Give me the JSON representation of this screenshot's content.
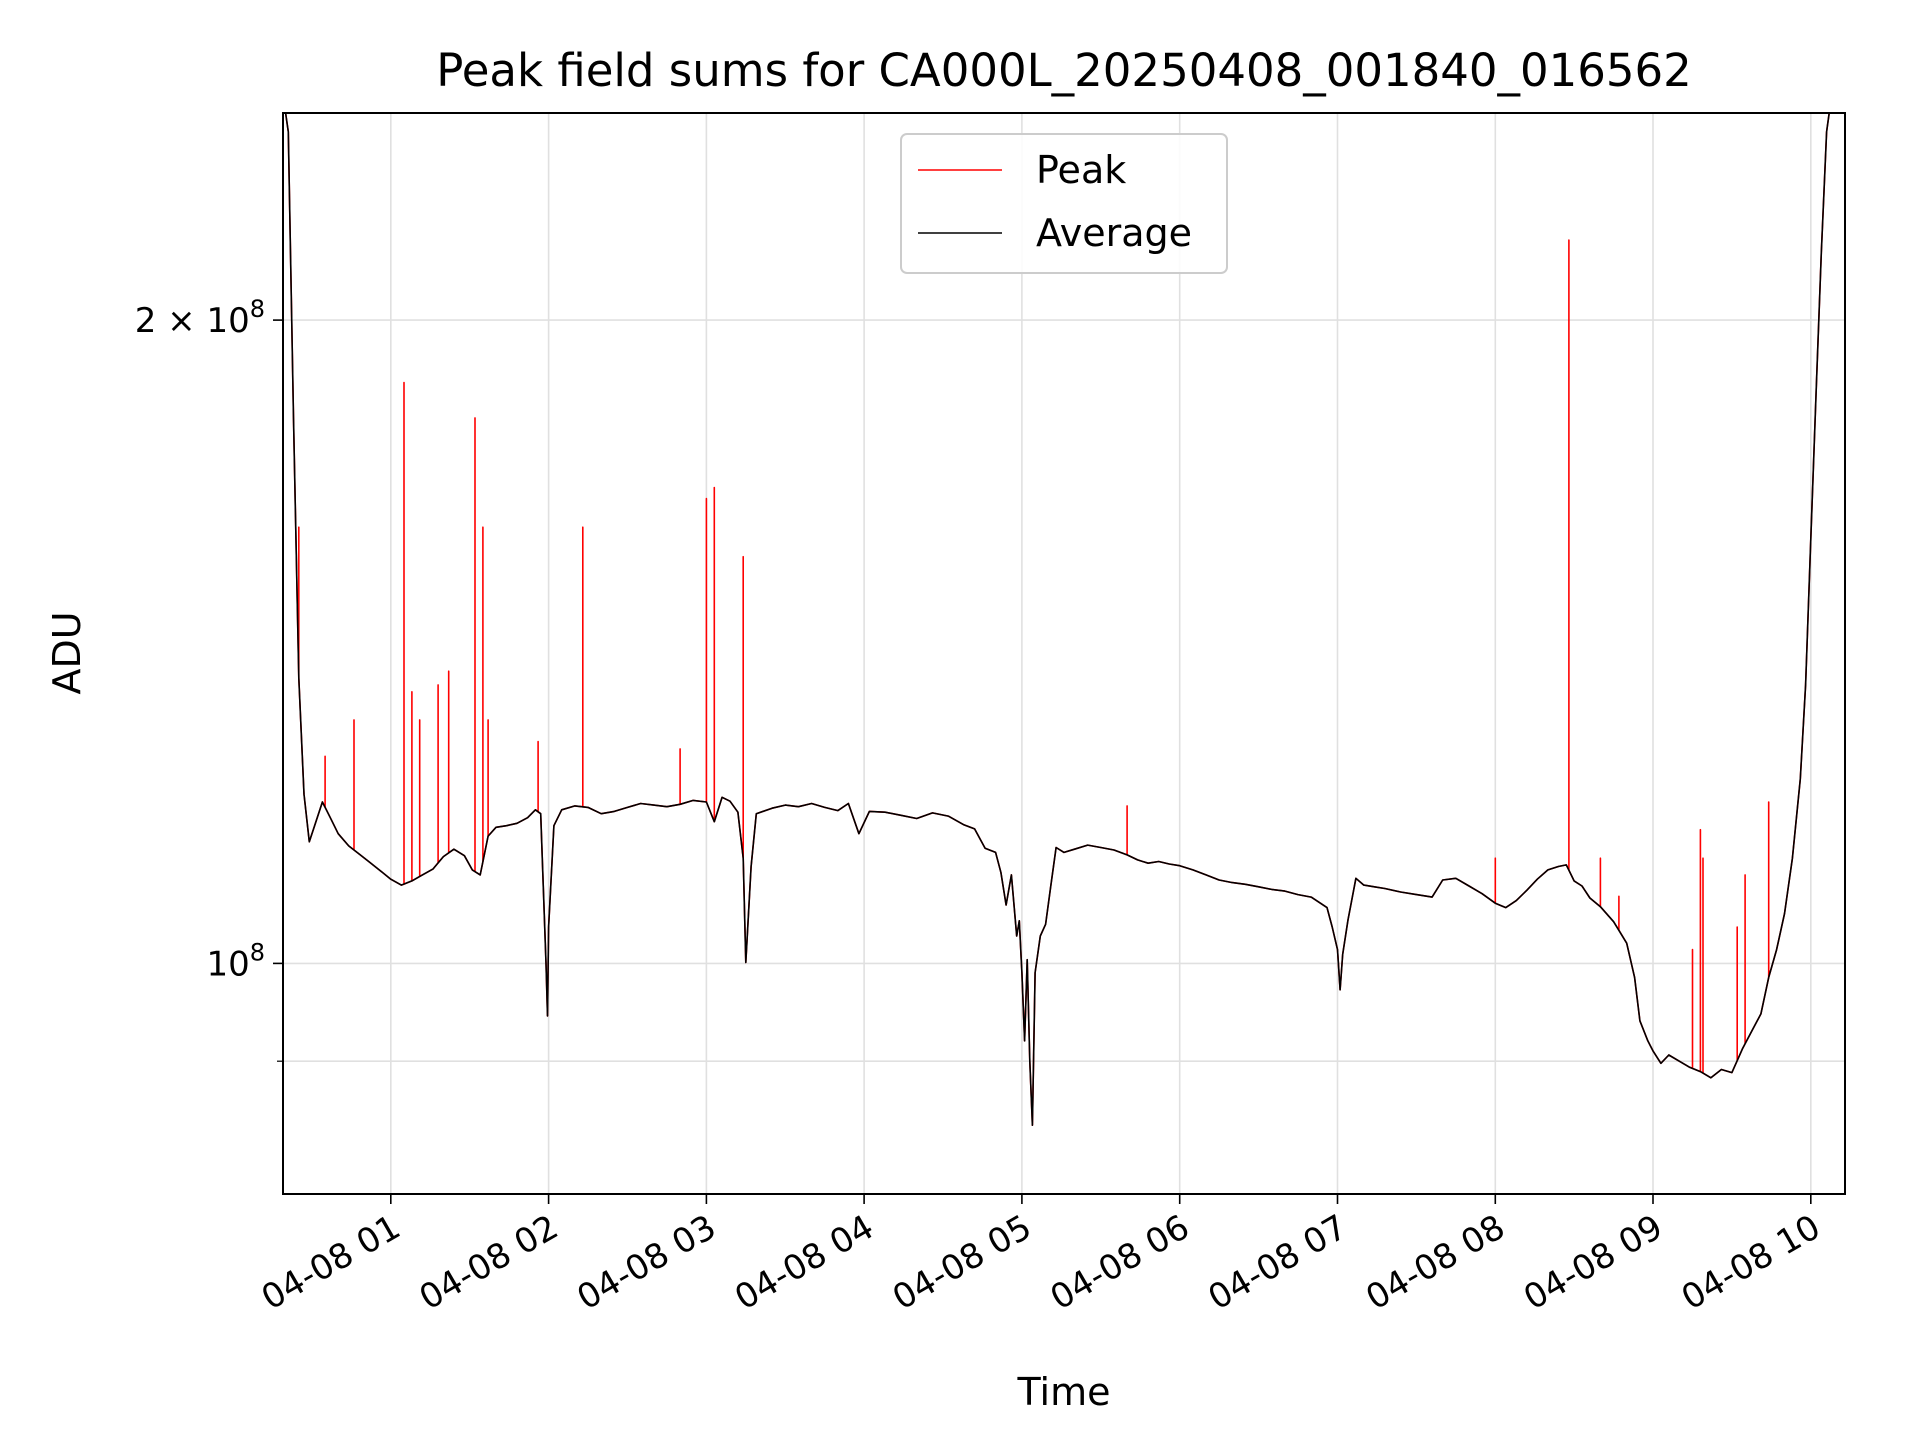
{
  "chart_data": {
    "type": "line",
    "title": "Peak field sums for CA000L_20250408_001840_016562",
    "xlabel": "Time",
    "ylabel": "ADU",
    "yscale": "log",
    "ylim": [
      78000000,
      250000000
    ],
    "xlim": [
      "2025-04-08 00:19",
      "2025-04-08 10:13"
    ],
    "grid": true,
    "legend_position": "top-center",
    "x_tick_labels": [
      "04-08 01",
      "04-08 02",
      "04-08 03",
      "04-08 04",
      "04-08 05",
      "04-08 06",
      "04-08 07",
      "04-08 08",
      "04-08 09",
      "04-08 10"
    ],
    "x_ticks": [
      "2025-04-08 01:00",
      "2025-04-08 02:00",
      "2025-04-08 03:00",
      "2025-04-08 04:00",
      "2025-04-08 05:00",
      "2025-04-08 06:00",
      "2025-04-08 07:00",
      "2025-04-08 08:00",
      "2025-04-08 09:00",
      "2025-04-08 10:00"
    ],
    "y_ticks_labeled": [
      {
        "value": 100000000,
        "mantissa": "",
        "base": "10",
        "exp": "8"
      },
      {
        "value": 200000000,
        "mantissa": "2 × ",
        "base": "10",
        "exp": "8"
      }
    ],
    "y_minor_ticks": [
      90000000
    ],
    "colors": {
      "peak": "#ff0000",
      "average": "#000000",
      "grid": "#e0e0e0"
    },
    "series": [
      {
        "name": "Average",
        "color": "#000000",
        "points": [
          [
            "2025-04-08 00:20",
            250000000
          ],
          [
            "2025-04-08 00:21",
            245000000
          ],
          [
            "2025-04-08 00:23",
            180000000
          ],
          [
            "2025-04-08 00:25",
            136000000
          ],
          [
            "2025-04-08 00:27",
            120000000
          ],
          [
            "2025-04-08 00:29",
            114000000
          ],
          [
            "2025-04-08 00:31",
            116000000
          ],
          [
            "2025-04-08 00:34",
            119000000
          ],
          [
            "2025-04-08 00:37",
            117000000
          ],
          [
            "2025-04-08 00:40",
            115000000
          ],
          [
            "2025-04-08 00:44",
            113500000
          ],
          [
            "2025-04-08 00:48",
            112500000
          ],
          [
            "2025-04-08 00:52",
            111500000
          ],
          [
            "2025-04-08 00:56",
            110500000
          ],
          [
            "2025-04-08 01:00",
            109500000
          ],
          [
            "2025-04-08 01:04",
            108800000
          ],
          [
            "2025-04-08 01:08",
            109300000
          ],
          [
            "2025-04-08 01:12",
            110000000
          ],
          [
            "2025-04-08 01:16",
            110700000
          ],
          [
            "2025-04-08 01:20",
            112200000
          ],
          [
            "2025-04-08 01:24",
            113100000
          ],
          [
            "2025-04-08 01:28",
            112300000
          ],
          [
            "2025-04-08 01:31",
            110600000
          ],
          [
            "2025-04-08 01:34",
            110000000
          ],
          [
            "2025-04-08 01:37",
            114700000
          ],
          [
            "2025-04-08 01:40",
            115800000
          ],
          [
            "2025-04-08 01:44",
            116000000
          ],
          [
            "2025-04-08 01:48",
            116300000
          ],
          [
            "2025-04-08 01:52",
            117000000
          ],
          [
            "2025-04-08 01:55",
            118000000
          ],
          [
            "2025-04-08 01:57",
            117500000
          ],
          [
            "2025-04-08 01:59",
            100000000
          ],
          [
            "2025-04-08 01:59.6",
            94500000
          ],
          [
            "2025-04-08 02:00",
            104000000
          ],
          [
            "2025-04-08 02:02",
            116000000
          ],
          [
            "2025-04-08 02:05",
            118000000
          ],
          [
            "2025-04-08 02:10",
            118500000
          ],
          [
            "2025-04-08 02:15",
            118300000
          ],
          [
            "2025-04-08 02:20",
            117500000
          ],
          [
            "2025-04-08 02:25",
            117800000
          ],
          [
            "2025-04-08 02:30",
            118300000
          ],
          [
            "2025-04-08 02:35",
            118800000
          ],
          [
            "2025-04-08 02:40",
            118600000
          ],
          [
            "2025-04-08 02:45",
            118400000
          ],
          [
            "2025-04-08 02:50",
            118700000
          ],
          [
            "2025-04-08 02:55",
            119200000
          ],
          [
            "2025-04-08 03:00",
            119000000
          ],
          [
            "2025-04-08 03:03",
            116500000
          ],
          [
            "2025-04-08 03:06",
            119600000
          ],
          [
            "2025-04-08 03:09",
            119100000
          ],
          [
            "2025-04-08 03:12",
            117700000
          ],
          [
            "2025-04-08 03:14",
            112000000
          ],
          [
            "2025-04-08 03:15",
            100100000
          ],
          [
            "2025-04-08 03:17",
            111000000
          ],
          [
            "2025-04-08 03:19",
            117500000
          ],
          [
            "2025-04-08 03:25",
            118200000
          ],
          [
            "2025-04-08 03:30",
            118600000
          ],
          [
            "2025-04-08 03:35",
            118400000
          ],
          [
            "2025-04-08 03:40",
            118800000
          ],
          [
            "2025-04-08 03:45",
            118300000
          ],
          [
            "2025-04-08 03:50",
            117900000
          ],
          [
            "2025-04-08 03:54",
            118800000
          ],
          [
            "2025-04-08 03:58",
            115000000
          ],
          [
            "2025-04-08 04:02",
            117800000
          ],
          [
            "2025-04-08 04:08",
            117700000
          ],
          [
            "2025-04-08 04:14",
            117300000
          ],
          [
            "2025-04-08 04:20",
            116900000
          ],
          [
            "2025-04-08 04:26",
            117600000
          ],
          [
            "2025-04-08 04:32",
            117200000
          ],
          [
            "2025-04-08 04:38",
            116100000
          ],
          [
            "2025-04-08 04:42",
            115600000
          ],
          [
            "2025-04-08 04:46",
            113200000
          ],
          [
            "2025-04-08 04:50",
            112700000
          ],
          [
            "2025-04-08 04:52",
            110300000
          ],
          [
            "2025-04-08 04:54",
            106500000
          ],
          [
            "2025-04-08 04:56",
            110000000
          ],
          [
            "2025-04-08 04:58",
            103000000
          ],
          [
            "2025-04-08 04:59",
            104700000
          ],
          [
            "2025-04-08 05:00",
            99000000
          ],
          [
            "2025-04-08 05:01",
            92000000
          ],
          [
            "2025-04-08 05:02",
            100400000
          ],
          [
            "2025-04-08 05:03",
            90000000
          ],
          [
            "2025-04-08 05:04",
            84000000
          ],
          [
            "2025-04-08 05:05",
            99000000
          ],
          [
            "2025-04-08 05:07",
            103000000
          ],
          [
            "2025-04-08 05:09",
            104300000
          ],
          [
            "2025-04-08 05:11",
            108800000
          ],
          [
            "2025-04-08 05:13",
            113300000
          ],
          [
            "2025-04-08 05:16",
            112700000
          ],
          [
            "2025-04-08 05:20",
            113100000
          ],
          [
            "2025-04-08 05:25",
            113600000
          ],
          [
            "2025-04-08 05:30",
            113300000
          ],
          [
            "2025-04-08 05:35",
            113000000
          ],
          [
            "2025-04-08 05:40",
            112400000
          ],
          [
            "2025-04-08 05:44",
            111800000
          ],
          [
            "2025-04-08 05:48",
            111400000
          ],
          [
            "2025-04-08 05:52",
            111600000
          ],
          [
            "2025-04-08 05:56",
            111300000
          ],
          [
            "2025-04-08 06:00",
            111100000
          ],
          [
            "2025-04-08 06:05",
            110600000
          ],
          [
            "2025-04-08 06:10",
            110000000
          ],
          [
            "2025-04-08 06:15",
            109400000
          ],
          [
            "2025-04-08 06:20",
            109100000
          ],
          [
            "2025-04-08 06:25",
            108900000
          ],
          [
            "2025-04-08 06:30",
            108600000
          ],
          [
            "2025-04-08 06:35",
            108300000
          ],
          [
            "2025-04-08 06:40",
            108100000
          ],
          [
            "2025-04-08 06:45",
            107700000
          ],
          [
            "2025-04-08 06:50",
            107400000
          ],
          [
            "2025-04-08 06:53",
            106800000
          ],
          [
            "2025-04-08 06:56",
            106200000
          ],
          [
            "2025-04-08 06:58",
            104000000
          ],
          [
            "2025-04-08 07:00",
            101500000
          ],
          [
            "2025-04-08 07:01",
            97200000
          ],
          [
            "2025-04-08 07:02",
            101000000
          ],
          [
            "2025-04-08 07:04",
            104800000
          ],
          [
            "2025-04-08 07:07",
            109600000
          ],
          [
            "2025-04-08 07:10",
            108800000
          ],
          [
            "2025-04-08 07:14",
            108600000
          ],
          [
            "2025-04-08 07:18",
            108400000
          ],
          [
            "2025-04-08 07:24",
            108000000
          ],
          [
            "2025-04-08 07:30",
            107700000
          ],
          [
            "2025-04-08 07:36",
            107400000
          ],
          [
            "2025-04-08 07:40",
            109400000
          ],
          [
            "2025-04-08 07:45",
            109600000
          ],
          [
            "2025-04-08 07:50",
            108700000
          ],
          [
            "2025-04-08 07:55",
            107800000
          ],
          [
            "2025-04-08 08:00",
            106700000
          ],
          [
            "2025-04-08 08:04",
            106200000
          ],
          [
            "2025-04-08 08:08",
            107000000
          ],
          [
            "2025-04-08 08:12",
            108200000
          ],
          [
            "2025-04-08 08:16",
            109500000
          ],
          [
            "2025-04-08 08:20",
            110600000
          ],
          [
            "2025-04-08 08:24",
            111000000
          ],
          [
            "2025-04-08 08:27",
            111200000
          ],
          [
            "2025-04-08 08:30",
            109300000
          ],
          [
            "2025-04-08 08:33",
            108700000
          ],
          [
            "2025-04-08 08:36",
            107300000
          ],
          [
            "2025-04-08 08:40",
            106300000
          ],
          [
            "2025-04-08 08:45",
            104600000
          ],
          [
            "2025-04-08 08:50",
            102200000
          ],
          [
            "2025-04-08 08:53",
            98500000
          ],
          [
            "2025-04-08 08:55",
            94000000
          ],
          [
            "2025-04-08 08:58",
            92000000
          ],
          [
            "2025-04-08 09:00",
            91000000
          ],
          [
            "2025-04-08 09:03",
            89800000
          ],
          [
            "2025-04-08 09:06",
            90600000
          ],
          [
            "2025-04-08 09:10",
            90000000
          ],
          [
            "2025-04-08 09:14",
            89400000
          ],
          [
            "2025-04-08 09:18",
            89000000
          ],
          [
            "2025-04-08 09:22",
            88400000
          ],
          [
            "2025-04-08 09:26",
            89200000
          ],
          [
            "2025-04-08 09:30",
            88900000
          ],
          [
            "2025-04-08 09:34",
            91200000
          ],
          [
            "2025-04-08 09:38",
            93200000
          ],
          [
            "2025-04-08 09:41",
            94700000
          ],
          [
            "2025-04-08 09:44",
            98500000
          ],
          [
            "2025-04-08 09:47",
            101500000
          ],
          [
            "2025-04-08 09:50",
            105500000
          ],
          [
            "2025-04-08 09:53",
            112000000
          ],
          [
            "2025-04-08 09:56",
            122000000
          ],
          [
            "2025-04-08 09:58",
            135000000
          ],
          [
            "2025-04-08 10:00",
            158000000
          ],
          [
            "2025-04-08 10:02",
            185000000
          ],
          [
            "2025-04-08 10:04",
            215000000
          ],
          [
            "2025-04-08 10:06",
            245000000
          ],
          [
            "2025-04-08 10:07",
            250000000
          ]
        ]
      },
      {
        "name": "Peak",
        "color": "#ff0000",
        "spikes": [
          [
            "2025-04-08 00:25",
            160000000
          ],
          [
            "2025-04-08 00:35",
            125000000
          ],
          [
            "2025-04-08 00:46",
            130000000
          ],
          [
            "2025-04-08 01:05",
            187000000
          ],
          [
            "2025-04-08 01:08",
            134000000
          ],
          [
            "2025-04-08 01:11",
            130000000
          ],
          [
            "2025-04-08 01:18",
            135000000
          ],
          [
            "2025-04-08 01:22",
            137000000
          ],
          [
            "2025-04-08 01:32",
            180000000
          ],
          [
            "2025-04-08 01:35",
            160000000
          ],
          [
            "2025-04-08 01:37",
            130000000
          ],
          [
            "2025-04-08 01:56",
            127000000
          ],
          [
            "2025-04-08 02:13",
            160000000
          ],
          [
            "2025-04-08 02:50",
            126000000
          ],
          [
            "2025-04-08 03:00",
            165000000
          ],
          [
            "2025-04-08 03:03",
            167000000
          ],
          [
            "2025-04-08 03:14",
            155000000
          ],
          [
            "2025-04-08 05:40",
            118500000
          ],
          [
            "2025-04-08 08:00",
            112000000
          ],
          [
            "2025-04-08 08:28",
            218000000
          ],
          [
            "2025-04-08 08:40",
            112000000
          ],
          [
            "2025-04-08 08:47",
            107500000
          ],
          [
            "2025-04-08 09:15",
            101500000
          ],
          [
            "2025-04-08 09:18",
            115500000
          ],
          [
            "2025-04-08 09:19",
            112000000
          ],
          [
            "2025-04-08 09:32",
            104000000
          ],
          [
            "2025-04-08 09:35",
            110000000
          ],
          [
            "2025-04-08 09:44",
            119000000
          ]
        ]
      }
    ]
  }
}
